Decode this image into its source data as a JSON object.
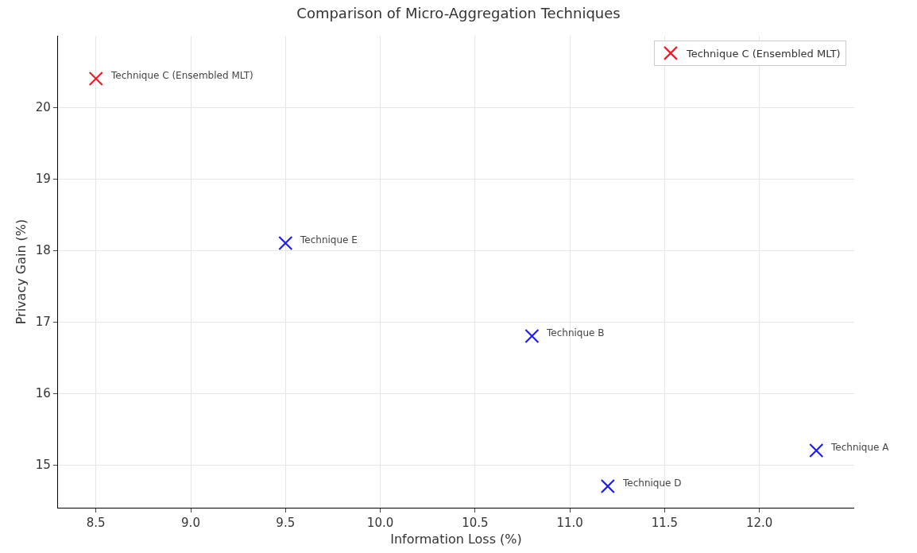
{
  "chart_data": {
    "type": "scatter",
    "title": "Comparison of Micro-Aggregation Techniques",
    "xlabel": "Information Loss (%)",
    "ylabel": "Privacy Gain (%)",
    "series": [
      {
        "name": "Technique C (Ensembled MLT)",
        "color": "#e8202a",
        "x": [
          8.5
        ],
        "values": [
          20.4
        ]
      },
      {
        "color": "#2020e0",
        "x": [
          12.3,
          10.8,
          11.2,
          9.5
        ],
        "values": [
          15.2,
          16.8,
          14.7,
          18.1
        ]
      }
    ],
    "annotations": [
      {
        "text": "Technique C (Ensembled MLT)",
        "x": 8.5,
        "y": 20.4
      },
      {
        "text": "Technique A",
        "x": 12.3,
        "y": 15.2
      },
      {
        "text": "Technique B",
        "x": 10.8,
        "y": 16.8
      },
      {
        "text": "Technique D",
        "x": 11.2,
        "y": 14.7
      },
      {
        "text": "Technique E",
        "x": 9.5,
        "y": 18.1
      }
    ],
    "xlim": [
      8.3,
      12.5
    ],
    "xticks": [
      {
        "value": 8.5,
        "label": "8.5"
      },
      {
        "value": 9.0,
        "label": "9.0"
      },
      {
        "value": 9.5,
        "label": "9.5"
      },
      {
        "value": 10.0,
        "label": "10.0"
      },
      {
        "value": 10.5,
        "label": "10.5"
      },
      {
        "value": 11.0,
        "label": "11.0"
      },
      {
        "value": 11.5,
        "label": "11.5"
      },
      {
        "value": 12.0,
        "label": "12.0"
      }
    ],
    "ylim": [
      14.4,
      21.0
    ],
    "yticks": [
      15,
      16,
      17,
      18,
      19,
      20
    ],
    "grid": true,
    "legend": "top right",
    "marker": "cross"
  }
}
